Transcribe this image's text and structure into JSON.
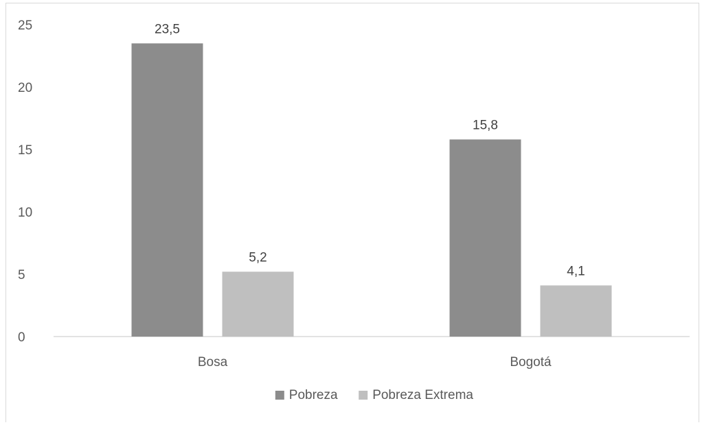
{
  "chart_data": {
    "type": "bar",
    "categories": [
      "Bosa",
      "Bogotá"
    ],
    "series": [
      {
        "name": "Pobreza",
        "values": [
          23.5,
          15.8
        ],
        "labels": [
          "23,5",
          "15,8"
        ],
        "color": "#8c8c8c"
      },
      {
        "name": "Pobreza Extrema",
        "values": [
          5.2,
          4.1
        ],
        "labels": [
          "5,2",
          "4,1"
        ],
        "color": "#bfbfbf"
      }
    ],
    "yticks": [
      "0",
      "5",
      "10",
      "15",
      "20",
      "25"
    ],
    "ylim": [
      0,
      25
    ],
    "grid": false,
    "legend_position": "bottom"
  }
}
